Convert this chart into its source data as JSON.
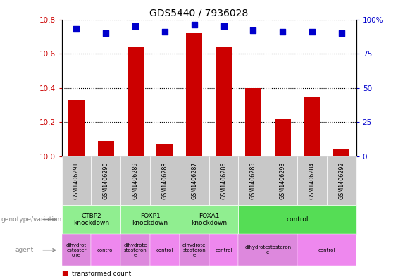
{
  "title": "GDS5440 / 7936028",
  "samples": [
    "GSM1406291",
    "GSM1406290",
    "GSM1406289",
    "GSM1406288",
    "GSM1406287",
    "GSM1406286",
    "GSM1406285",
    "GSM1406293",
    "GSM1406284",
    "GSM1406292"
  ],
  "transformed_count": [
    10.33,
    10.09,
    10.64,
    10.07,
    10.72,
    10.64,
    10.4,
    10.22,
    10.35,
    10.04
  ],
  "percentile_rank": [
    93,
    90,
    95,
    91,
    96,
    95,
    92,
    91,
    91,
    90
  ],
  "ylim_left": [
    10.0,
    10.8
  ],
  "ylim_right": [
    0,
    100
  ],
  "yticks_left": [
    10.0,
    10.2,
    10.4,
    10.6,
    10.8
  ],
  "yticks_right": [
    0,
    25,
    50,
    75,
    100
  ],
  "bar_color": "#cc0000",
  "dot_color": "#0000cc",
  "dot_size": 35,
  "bar_width": 0.55,
  "sample_box_color": "#c8c8c8",
  "genotype_groups": [
    {
      "label": "CTBP2\nknockdown",
      "start": 0,
      "end": 2,
      "color": "#90ee90"
    },
    {
      "label": "FOXP1\nknockdown",
      "start": 2,
      "end": 4,
      "color": "#90ee90"
    },
    {
      "label": "FOXA1\nknockdown",
      "start": 4,
      "end": 6,
      "color": "#90ee90"
    },
    {
      "label": "control",
      "start": 6,
      "end": 10,
      "color": "#55dd55"
    }
  ],
  "agent_groups": [
    {
      "label": "dihydrot\nestoster\none",
      "start": 0,
      "end": 1,
      "color": "#dd88dd"
    },
    {
      "label": "control",
      "start": 1,
      "end": 2,
      "color": "#ee88ee"
    },
    {
      "label": "dihydrote\nstosteron\ne",
      "start": 2,
      "end": 3,
      "color": "#dd88dd"
    },
    {
      "label": "control",
      "start": 3,
      "end": 4,
      "color": "#ee88ee"
    },
    {
      "label": "dihydrote\nstosteron\ne",
      "start": 4,
      "end": 5,
      "color": "#dd88dd"
    },
    {
      "label": "control",
      "start": 5,
      "end": 6,
      "color": "#ee88ee"
    },
    {
      "label": "dihydrotestosteron\ne",
      "start": 6,
      "end": 8,
      "color": "#dd88dd"
    },
    {
      "label": "control",
      "start": 8,
      "end": 10,
      "color": "#ee88ee"
    }
  ]
}
